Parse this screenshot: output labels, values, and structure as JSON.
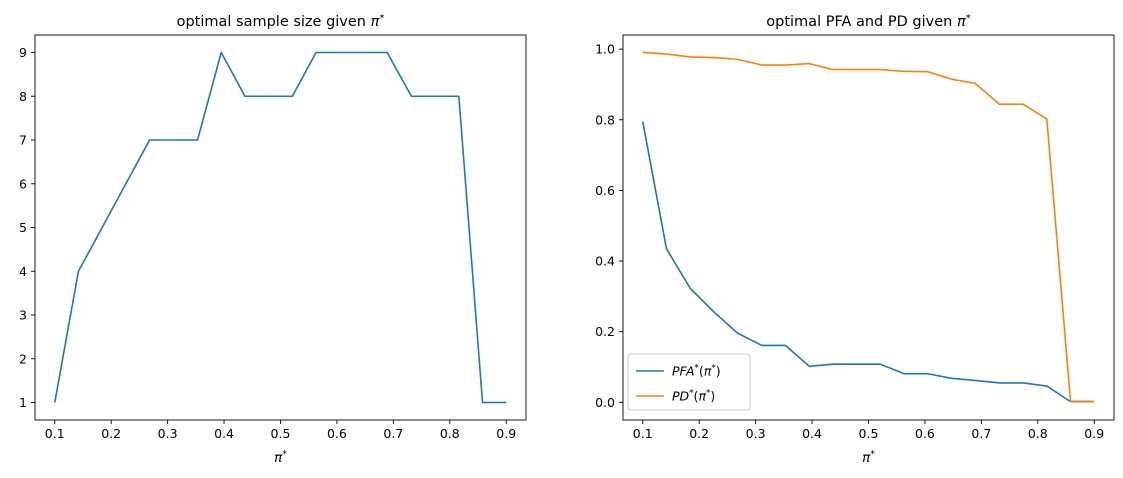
{
  "chart_data": [
    {
      "type": "line",
      "title_main": "optimal sample size given ",
      "title_math": "π",
      "title_sup": "*",
      "xlabel_math": "π",
      "xlabel_sup": "*",
      "ylabel": "",
      "xlim": [
        0.065,
        0.935
      ],
      "ylim": [
        0.6,
        9.4
      ],
      "xticks": [
        0.1,
        0.2,
        0.3,
        0.4,
        0.5,
        0.6,
        0.7,
        0.8,
        0.9
      ],
      "xtick_labels": [
        "0.1",
        "0.2",
        "0.3",
        "0.4",
        "0.5",
        "0.6",
        "0.7",
        "0.8",
        "0.9"
      ],
      "yticks": [
        1,
        2,
        3,
        4,
        5,
        6,
        7,
        8,
        9
      ],
      "ytick_labels": [
        "1",
        "2",
        "3",
        "4",
        "5",
        "6",
        "7",
        "8",
        "9"
      ],
      "x": [
        0.1,
        0.142,
        0.184,
        0.226,
        0.268,
        0.311,
        0.353,
        0.395,
        0.437,
        0.479,
        0.521,
        0.563,
        0.605,
        0.647,
        0.689,
        0.732,
        0.774,
        0.816,
        0.858,
        0.9
      ],
      "series": [
        {
          "color": "#1f77b4",
          "values": [
            1,
            4,
            5,
            6,
            7,
            7,
            7,
            9,
            8,
            8,
            8,
            9,
            9,
            9,
            9,
            8,
            8,
            8,
            1,
            1
          ]
        }
      ],
      "grid": false
    },
    {
      "type": "line",
      "title_main": "optimal PFA and PD given ",
      "title_math": "π",
      "title_sup": "*",
      "xlabel_math": "π",
      "xlabel_sup": "*",
      "ylabel": "",
      "xlim": [
        0.065,
        0.935
      ],
      "ylim": [
        -0.05,
        1.04
      ],
      "xticks": [
        0.1,
        0.2,
        0.3,
        0.4,
        0.5,
        0.6,
        0.7,
        0.8,
        0.9
      ],
      "xtick_labels": [
        "0.1",
        "0.2",
        "0.3",
        "0.4",
        "0.5",
        "0.6",
        "0.7",
        "0.8",
        "0.9"
      ],
      "yticks": [
        0.0,
        0.2,
        0.4,
        0.6,
        0.8,
        1.0
      ],
      "ytick_labels": [
        "0.0",
        "0.2",
        "0.4",
        "0.6",
        "0.8",
        "1.0"
      ],
      "x": [
        0.1,
        0.142,
        0.184,
        0.226,
        0.268,
        0.311,
        0.353,
        0.395,
        0.437,
        0.479,
        0.521,
        0.563,
        0.605,
        0.647,
        0.689,
        0.732,
        0.774,
        0.816,
        0.858,
        0.9
      ],
      "series": [
        {
          "name_math": "PFA",
          "name_rest": "(π",
          "name_close": ")",
          "color": "#1f77b4",
          "values": [
            0.795,
            0.435,
            0.323,
            0.256,
            0.196,
            0.161,
            0.161,
            0.102,
            0.108,
            0.108,
            0.108,
            0.081,
            0.081,
            0.068,
            0.062,
            0.055,
            0.055,
            0.046,
            0.002,
            0.002
          ]
        },
        {
          "name_math": "PD",
          "name_rest": "(π",
          "name_close": ")",
          "color": "#ff7f0e",
          "values": [
            0.991,
            0.986,
            0.978,
            0.976,
            0.971,
            0.955,
            0.955,
            0.959,
            0.942,
            0.942,
            0.942,
            0.937,
            0.936,
            0.915,
            0.903,
            0.844,
            0.844,
            0.802,
            0.003,
            0.003
          ]
        }
      ],
      "legend": "lower-left",
      "grid": false
    }
  ]
}
